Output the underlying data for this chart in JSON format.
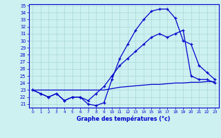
{
  "xlabel": "Graphe des températures (°c)",
  "bg_color": "#cdf0f0",
  "grid_color": "#aad8d8",
  "line_color": "#0000cc",
  "x_hours": [
    0,
    1,
    2,
    3,
    4,
    5,
    6,
    7,
    8,
    9,
    10,
    11,
    12,
    13,
    14,
    15,
    16,
    17,
    18,
    19,
    20,
    21,
    22,
    23
  ],
  "curve1": [
    23.0,
    22.5,
    22.0,
    22.5,
    21.5,
    22.0,
    22.0,
    21.0,
    20.8,
    21.2,
    24.5,
    27.5,
    29.5,
    31.5,
    33.0,
    34.2,
    34.5,
    34.5,
    33.2,
    30.0,
    29.5,
    26.5,
    25.5,
    24.5
  ],
  "curve2": [
    23.0,
    22.5,
    22.0,
    22.5,
    21.5,
    22.0,
    22.0,
    21.5,
    22.5,
    23.5,
    25.0,
    26.5,
    27.5,
    28.5,
    29.5,
    30.5,
    31.0,
    30.5,
    31.0,
    31.5,
    25.0,
    24.5,
    24.5,
    24.0
  ],
  "curve3": [
    23.0,
    23.0,
    23.0,
    23.0,
    23.0,
    23.0,
    23.0,
    23.0,
    23.0,
    23.0,
    23.2,
    23.4,
    23.5,
    23.6,
    23.7,
    23.8,
    23.8,
    23.9,
    24.0,
    24.0,
    24.1,
    24.1,
    24.2,
    24.2
  ],
  "ylim": [
    20.5,
    35.2
  ],
  "yticks": [
    21,
    22,
    23,
    24,
    25,
    26,
    27,
    28,
    29,
    30,
    31,
    32,
    33,
    34,
    35
  ],
  "xticks": [
    0,
    1,
    2,
    3,
    4,
    5,
    6,
    7,
    8,
    9,
    10,
    11,
    12,
    13,
    14,
    15,
    16,
    17,
    18,
    19,
    20,
    21,
    22,
    23
  ],
  "marker": "+"
}
